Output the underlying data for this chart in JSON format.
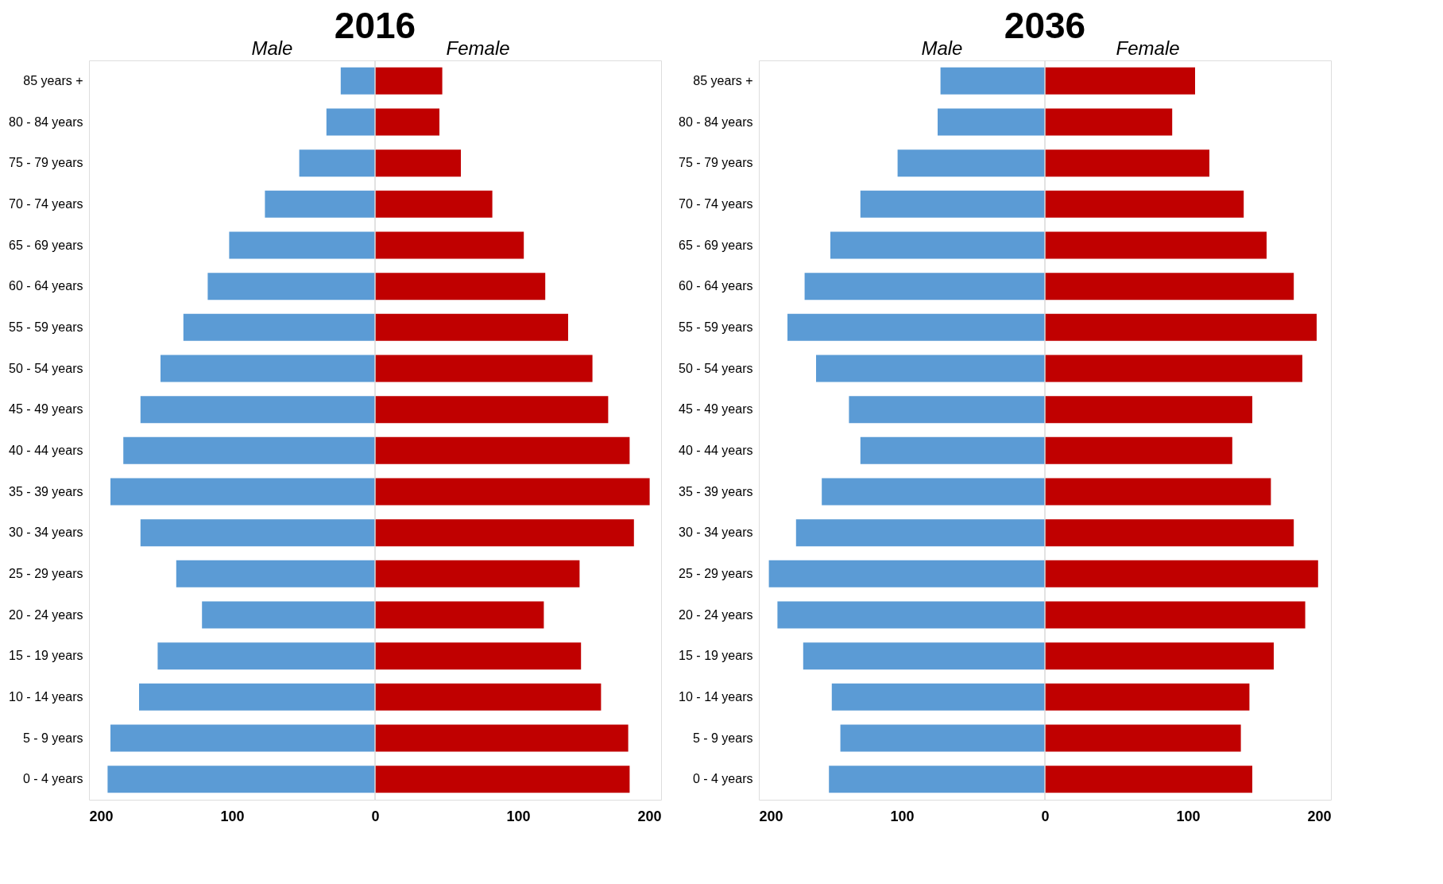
{
  "chart_data": [
    {
      "type": "bar",
      "orientation": "horizontal",
      "stacked": true,
      "title": "2016",
      "legend": false,
      "grid": false,
      "categories": [
        "85 years +",
        "80 - 84 years",
        "75 - 79 years",
        "70 - 74 years",
        "65 - 69 years",
        "60 - 64 years",
        "55 - 59 years",
        "50 - 54 years",
        "45 - 49 years",
        "40 - 44 years",
        "35 - 39 years",
        "30 - 34 years",
        "25 - 29 years",
        "20 - 24 years",
        "15 - 19 years",
        "10 - 14 years",
        "5 - 9 years",
        "0 - 4 years"
      ],
      "series": [
        {
          "name": "Male",
          "color": "#5b9bd5",
          "values": [
            -24,
            -34,
            -53,
            -77,
            -102,
            -117,
            -134,
            -150,
            -164,
            -176,
            -185,
            -164,
            -139,
            -121,
            -152,
            -165,
            -185,
            -187
          ]
        },
        {
          "name": "Female",
          "color": "#c00000",
          "values": [
            47,
            45,
            60,
            82,
            104,
            119,
            135,
            152,
            163,
            178,
            192,
            181,
            143,
            118,
            144,
            158,
            177,
            178
          ]
        }
      ],
      "xlim": [
        -200,
        200
      ],
      "xticks": [
        {
          "value": -200,
          "label": "200"
        },
        {
          "value": -100,
          "label": "100"
        },
        0,
        100,
        200
      ],
      "ref_lines": [
        {
          "axis": "x",
          "value": 0,
          "color": "#d9d9d9"
        }
      ]
    },
    {
      "type": "bar",
      "orientation": "horizontal",
      "stacked": true,
      "title": "2036",
      "legend": false,
      "grid": false,
      "categories": [
        "85 years +",
        "80 - 84 years",
        "75 - 79 years",
        "70 - 74 years",
        "65 - 69 years",
        "60 - 64 years",
        "55 - 59 years",
        "50 - 54 years",
        "45 - 49 years",
        "40 - 44 years",
        "35 - 39 years",
        "30 - 34 years",
        "25 - 29 years",
        "20 - 24 years",
        "15 - 19 years",
        "10 - 14 years",
        "5 - 9 years",
        "0 - 4 years"
      ],
      "series": [
        {
          "name": "Male",
          "color": "#5b9bd5",
          "values": [
            -73,
            -75,
            -103,
            -129,
            -150,
            -168,
            -180,
            -160,
            -137,
            -129,
            -156,
            -174,
            -193,
            -187,
            -169,
            -149,
            -143,
            -151
          ]
        },
        {
          "name": "Female",
          "color": "#c00000",
          "values": [
            105,
            89,
            115,
            139,
            155,
            174,
            190,
            180,
            145,
            131,
            158,
            174,
            191,
            182,
            160,
            143,
            137,
            145
          ]
        }
      ],
      "xlim": [
        -200,
        200
      ],
      "xticks": [
        {
          "value": -200,
          "label": "200"
        },
        {
          "value": -100,
          "label": "100"
        },
        0,
        100,
        200
      ],
      "ref_lines": [
        {
          "axis": "x",
          "value": 0,
          "color": "#d9d9d9"
        }
      ]
    }
  ]
}
